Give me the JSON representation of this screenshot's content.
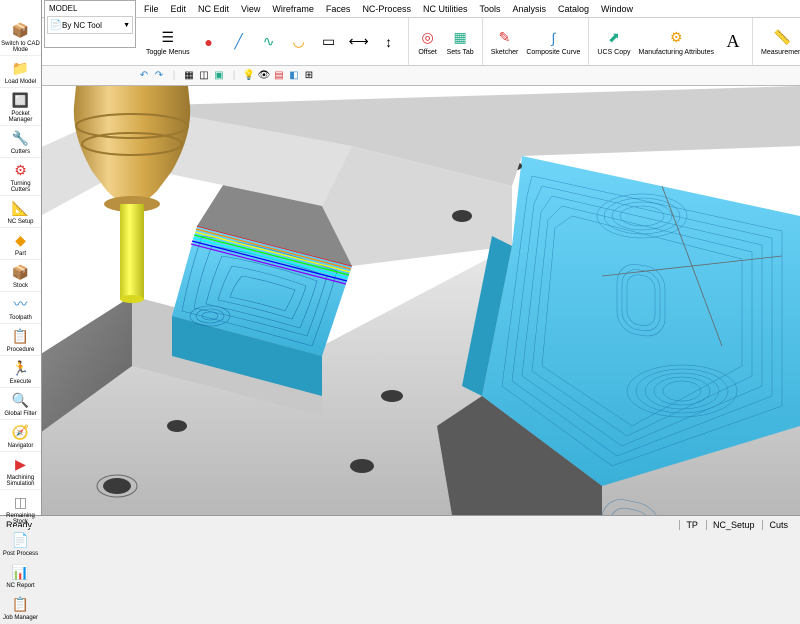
{
  "menubar": [
    "File",
    "Edit",
    "NC Edit",
    "View",
    "Wireframe",
    "Faces",
    "NC-Process",
    "NC Utilities",
    "Tools",
    "Analysis",
    "Catalog",
    "Window"
  ],
  "leftPanel": [
    {
      "label": "Switch to CAD Mode",
      "icon": "📦",
      "color": "#2a8"
    },
    {
      "label": "Load Model",
      "icon": "📁",
      "color": "#e90"
    },
    {
      "label": "Pocket Manager",
      "icon": "🔲",
      "color": "#888"
    },
    {
      "label": "Cutters",
      "icon": "🔧",
      "color": "#d33"
    },
    {
      "label": "Turning Cutters",
      "icon": "⚙",
      "color": "#d33"
    },
    {
      "label": "NC Setup",
      "icon": "📐",
      "color": "#38c"
    },
    {
      "label": "Part",
      "icon": "◆",
      "color": "#e90"
    },
    {
      "label": "Stock",
      "icon": "📦",
      "color": "#2a8"
    },
    {
      "label": "Toolpath",
      "icon": "〰",
      "color": "#38c"
    },
    {
      "label": "Procedure",
      "icon": "📋",
      "color": "#888"
    },
    {
      "label": "Execute",
      "icon": "🏃",
      "color": "#2a8"
    },
    {
      "label": "Global Filter",
      "icon": "🔍",
      "color": "#38c"
    },
    {
      "label": "Navigator",
      "icon": "🧭",
      "color": "#e90"
    },
    {
      "label": "Machining Simulation",
      "icon": "▶",
      "color": "#d33"
    },
    {
      "label": "Remaining Stock",
      "icon": "◫",
      "color": "#888"
    },
    {
      "label": "Post Process",
      "icon": "📄",
      "color": "#38c"
    },
    {
      "label": "NC Report",
      "icon": "📊",
      "color": "#2a8"
    },
    {
      "label": "Job Manager",
      "icon": "📋",
      "color": "#e90"
    }
  ],
  "modelPanel": {
    "header": "MODEL",
    "item": "By NC Tool"
  },
  "toolbar": {
    "toggle": "Toggle Menus",
    "offset": "Offset",
    "setsTab": "Sets Tab",
    "sketcher": "Sketcher",
    "composite": "Composite Curve",
    "ucsCopy": "UCS Copy",
    "manufacturing": "Manufacturing Attributes",
    "measurement": "Measurement"
  },
  "colors": {
    "palette": [
      "#000",
      "#800",
      "#080",
      "#880",
      "#008",
      "#808",
      "#fff",
      "#f00",
      "#0f0",
      "#ff0",
      "#00f",
      "#f0f",
      "#888",
      "#f88",
      "#8f8",
      "#ff8",
      "#88f",
      "#f8f"
    ]
  },
  "viewport": {
    "part_gray": "#a8a8a8",
    "part_gray_dark": "#6a6a6a",
    "part_gray_light": "#d8d8d8",
    "pocket_blue": "#4fc4e8",
    "pocket_blue_dark": "#2a9bc0",
    "tool_brass": "#d4a84a",
    "tool_brass_light": "#f0d088",
    "tool_yellow": "#f5f028",
    "hole_dark": "#3a3a3a",
    "toolpath_line": "#1060a0"
  },
  "status": {
    "left": "Ready",
    "right": [
      "TP",
      "NC_Setup",
      "Cuts"
    ]
  }
}
